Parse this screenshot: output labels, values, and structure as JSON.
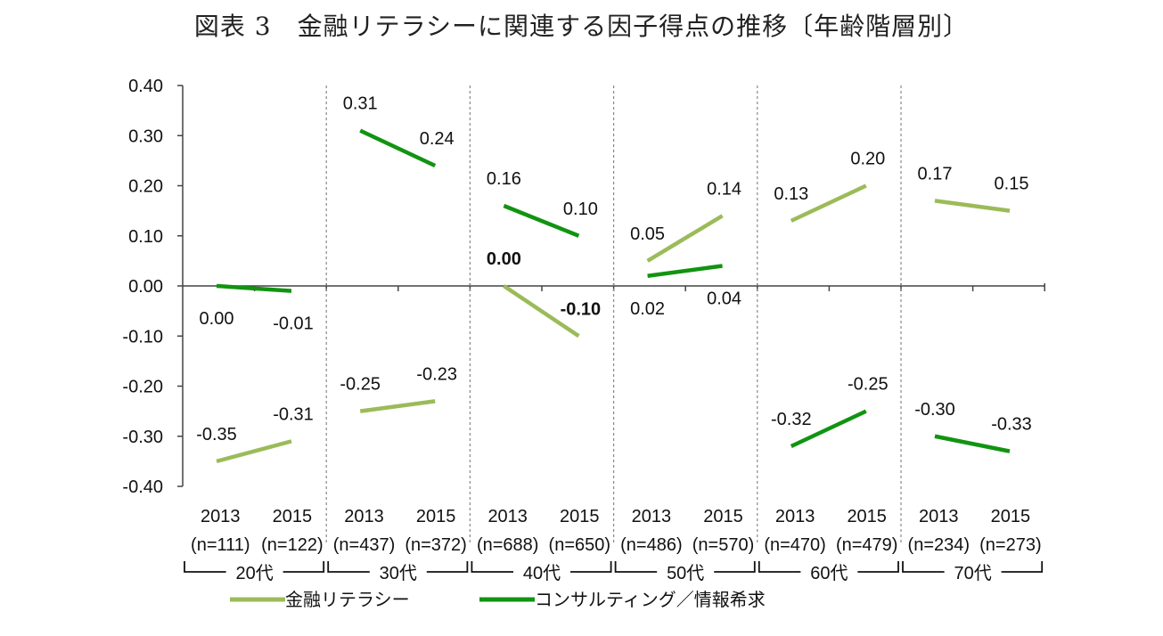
{
  "title": "図表 3　金融リテラシーに関連する因子得点の推移〔年齢階層別〕",
  "chart_data": {
    "type": "line",
    "title": "図表 3　金融リテラシーに関連する因子得点の推移〔年齢階層別〕",
    "ylim": [
      -0.4,
      0.4
    ],
    "yticks": [
      "0.40",
      "0.30",
      "0.20",
      "0.10",
      "0.00",
      "-0.10",
      "-0.20",
      "-0.30",
      "-0.40"
    ],
    "grid": false,
    "legend_position": "bottom",
    "groups": [
      {
        "label": "20代",
        "years": [
          "2013",
          "2015"
        ],
        "n": [
          "(n=111)",
          "(n=122)"
        ]
      },
      {
        "label": "30代",
        "years": [
          "2013",
          "2015"
        ],
        "n": [
          "(n=437)",
          "(n=372)"
        ]
      },
      {
        "label": "40代",
        "years": [
          "2013",
          "2015"
        ],
        "n": [
          "(n=688)",
          "(n=650)"
        ]
      },
      {
        "label": "50代",
        "years": [
          "2013",
          "2015"
        ],
        "n": [
          "(n=486)",
          "(n=570)"
        ]
      },
      {
        "label": "60代",
        "years": [
          "2013",
          "2015"
        ],
        "n": [
          "(n=470)",
          "(n=479)"
        ]
      },
      {
        "label": "70代",
        "years": [
          "2013",
          "2015"
        ],
        "n": [
          "(n=234)",
          "(n=273)"
        ]
      }
    ],
    "series": [
      {
        "name": "金融リテラシー",
        "color": "#9BBB59",
        "values": [
          [
            -0.35,
            -0.31
          ],
          [
            -0.25,
            -0.23
          ],
          [
            0.0,
            -0.1
          ],
          [
            0.05,
            0.14
          ],
          [
            0.13,
            0.2
          ],
          [
            0.17,
            0.15
          ]
        ],
        "labels": [
          [
            "-0.35",
            "-0.31"
          ],
          [
            "-0.25",
            "-0.23"
          ],
          [
            "0.00",
            "-0.10"
          ],
          [
            "0.05",
            "0.14"
          ],
          [
            "0.13",
            "0.20"
          ],
          [
            "0.17",
            "0.15"
          ]
        ]
      },
      {
        "name": "コンサルティング／情報希求",
        "color": "#119411",
        "values": [
          [
            0.0,
            -0.01
          ],
          [
            0.31,
            0.24
          ],
          [
            0.16,
            0.1
          ],
          [
            0.02,
            0.04
          ],
          [
            -0.32,
            -0.25
          ],
          [
            -0.3,
            -0.33
          ]
        ],
        "labels": [
          [
            "0.00",
            "-0.01"
          ],
          [
            "0.31",
            "0.24"
          ],
          [
            "0.16",
            "0.10"
          ],
          [
            "0.02",
            "0.04"
          ],
          [
            "-0.32",
            "-0.25"
          ],
          [
            "-0.30",
            "-0.33"
          ]
        ]
      }
    ]
  }
}
